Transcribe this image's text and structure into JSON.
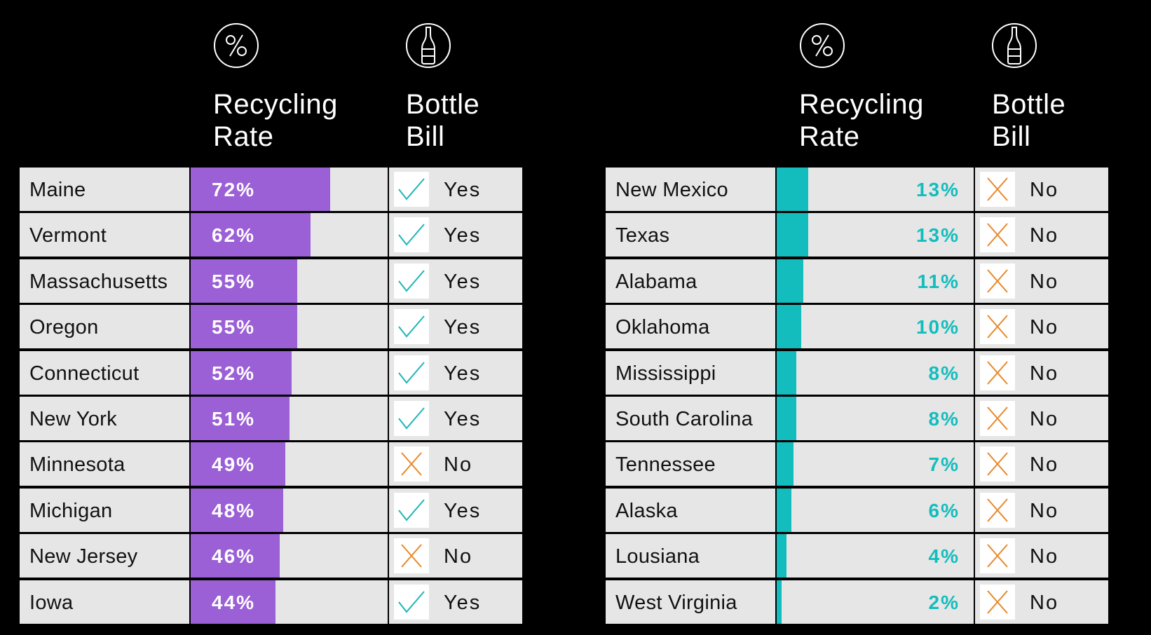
{
  "headers": {
    "rate_line1": "Recycling",
    "rate_line2": "Rate",
    "bill_line1": "Bottle",
    "bill_line2": "Bill",
    "rate_icon": "percent-icon",
    "bill_icon": "bottle-icon"
  },
  "colors": {
    "top_bar": "#9b5fd6",
    "bottom_bar": "#14bdbd",
    "yes_check": "#1fb5b8",
    "no_cross": "#e8892b",
    "cell_bg": "#e6e6e6",
    "background": "#000000"
  },
  "chart_data": [
    {
      "type": "table",
      "columns": [
        "",
        "Recycling Rate",
        "Bottle Bill"
      ],
      "rows": [
        {
          "state": "Maine",
          "rate": 72,
          "label": "72%",
          "bill": "Yes"
        },
        {
          "state": "Vermont",
          "rate": 62,
          "label": "62%",
          "bill": "Yes"
        },
        {
          "state": "Massachusetts",
          "rate": 55,
          "label": "55%",
          "bill": "Yes"
        },
        {
          "state": "Oregon",
          "rate": 55,
          "label": "55%",
          "bill": "Yes"
        },
        {
          "state": "Connecticut",
          "rate": 52,
          "label": "52%",
          "bill": "Yes"
        },
        {
          "state": "New York",
          "rate": 51,
          "label": "51%",
          "bill": "Yes"
        },
        {
          "state": "Minnesota",
          "rate": 49,
          "label": "49%",
          "bill": "No"
        },
        {
          "state": "Michigan",
          "rate": 48,
          "label": "48%",
          "bill": "Yes"
        },
        {
          "state": "New Jersey",
          "rate": 46,
          "label": "46%",
          "bill": "No"
        },
        {
          "state": "Iowa",
          "rate": 44,
          "label": "44%",
          "bill": "Yes"
        }
      ]
    },
    {
      "type": "table",
      "columns": [
        "",
        "Recycling Rate",
        "Bottle Bill"
      ],
      "rows": [
        {
          "state": "New Mexico",
          "rate": 13,
          "label": "13%",
          "bill": "No"
        },
        {
          "state": "Texas",
          "rate": 13,
          "label": "13%",
          "bill": "No"
        },
        {
          "state": "Alabama",
          "rate": 11,
          "label": "11%",
          "bill": "No"
        },
        {
          "state": "Oklahoma",
          "rate": 10,
          "label": "10%",
          "bill": "No"
        },
        {
          "state": "Mississippi",
          "rate": 8,
          "label": "8%",
          "bill": "No"
        },
        {
          "state": "South Carolina",
          "rate": 8,
          "label": "8%",
          "bill": "No"
        },
        {
          "state": "Tennessee",
          "rate": 7,
          "label": "7%",
          "bill": "No"
        },
        {
          "state": "Alaska",
          "rate": 6,
          "label": "6%",
          "bill": "No"
        },
        {
          "state": "Lousiana",
          "rate": 4,
          "label": "4%",
          "bill": "No"
        },
        {
          "state": "West Virginia",
          "rate": 2,
          "label": "2%",
          "bill": "No"
        }
      ]
    }
  ]
}
